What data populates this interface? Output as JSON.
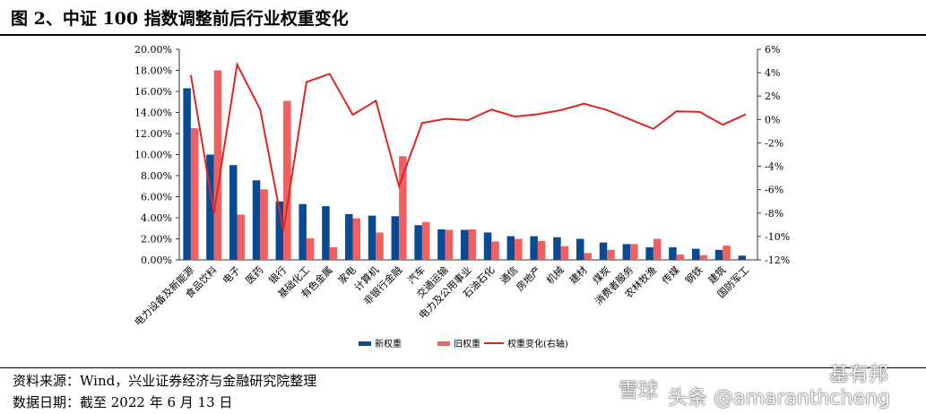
{
  "title": "图 2、中证 100 指数调整前后行业权重变化",
  "source": "资料来源：Wind，兴业证券经济与金融研究院整理",
  "date": "数据日期：截至 2022 年 6 月 13 日",
  "watermarks": [
    "雪球",
    "头条 @amaranthcheng",
    "基有邦"
  ],
  "colors": {
    "new": "#0a4a94",
    "old": "#f06060",
    "change": "#e02424"
  },
  "chart_data": {
    "type": "bar",
    "categories": [
      "电力设备及新能源",
      "食品饮料",
      "电子",
      "医药",
      "银行",
      "基础化工",
      "有色金属",
      "家电",
      "计算机",
      "非银行金融",
      "汽车",
      "交通运输",
      "电力及公用事业",
      "石油石化",
      "通信",
      "房地产",
      "机械",
      "建材",
      "煤炭",
      "消费者服务",
      "农林牧渔",
      "传媒",
      "钢铁",
      "建筑",
      "国防军工"
    ],
    "series": [
      {
        "name": "新权重",
        "type": "bar",
        "axis": "left",
        "values": [
          16.3,
          10.0,
          9.0,
          7.55,
          5.55,
          5.3,
          5.1,
          4.35,
          4.2,
          4.15,
          3.3,
          2.9,
          2.85,
          2.6,
          2.25,
          2.25,
          2.15,
          2.0,
          1.65,
          1.5,
          1.2,
          1.2,
          1.05,
          0.95,
          0.4
        ]
      },
      {
        "name": "旧权重",
        "type": "bar",
        "axis": "left",
        "values": [
          12.5,
          18.0,
          4.3,
          6.7,
          15.1,
          2.05,
          1.2,
          3.95,
          2.6,
          9.85,
          3.6,
          2.85,
          2.9,
          1.75,
          2.0,
          1.8,
          1.3,
          0.65,
          0.95,
          1.5,
          2.0,
          0.5,
          0.45,
          1.35,
          0
        ]
      },
      {
        "name": "权重变化(右轴)",
        "type": "line",
        "axis": "right",
        "values": [
          3.8,
          -8.0,
          4.7,
          0.85,
          -9.5,
          3.2,
          3.9,
          0.4,
          1.6,
          -5.7,
          -0.3,
          0.05,
          -0.05,
          0.85,
          0.25,
          0.45,
          0.8,
          1.35,
          0.8,
          0.0,
          -0.8,
          0.7,
          0.65,
          -0.45,
          0.45
        ]
      }
    ],
    "ylim_left": [
      0,
      20
    ],
    "yticks_left": [
      "0.00%",
      "2.00%",
      "4.00%",
      "6.00%",
      "8.00%",
      "10.00%",
      "12.00%",
      "14.00%",
      "16.00%",
      "18.00%",
      "20.00%"
    ],
    "ylim_right": [
      -12,
      6
    ],
    "yticks_right": [
      "-12%",
      "-10%",
      "-8%",
      "-6%",
      "-4%",
      "-2%",
      "0%",
      "2%",
      "4%",
      "6%"
    ],
    "legend_placement": "bottom",
    "grid": false
  }
}
